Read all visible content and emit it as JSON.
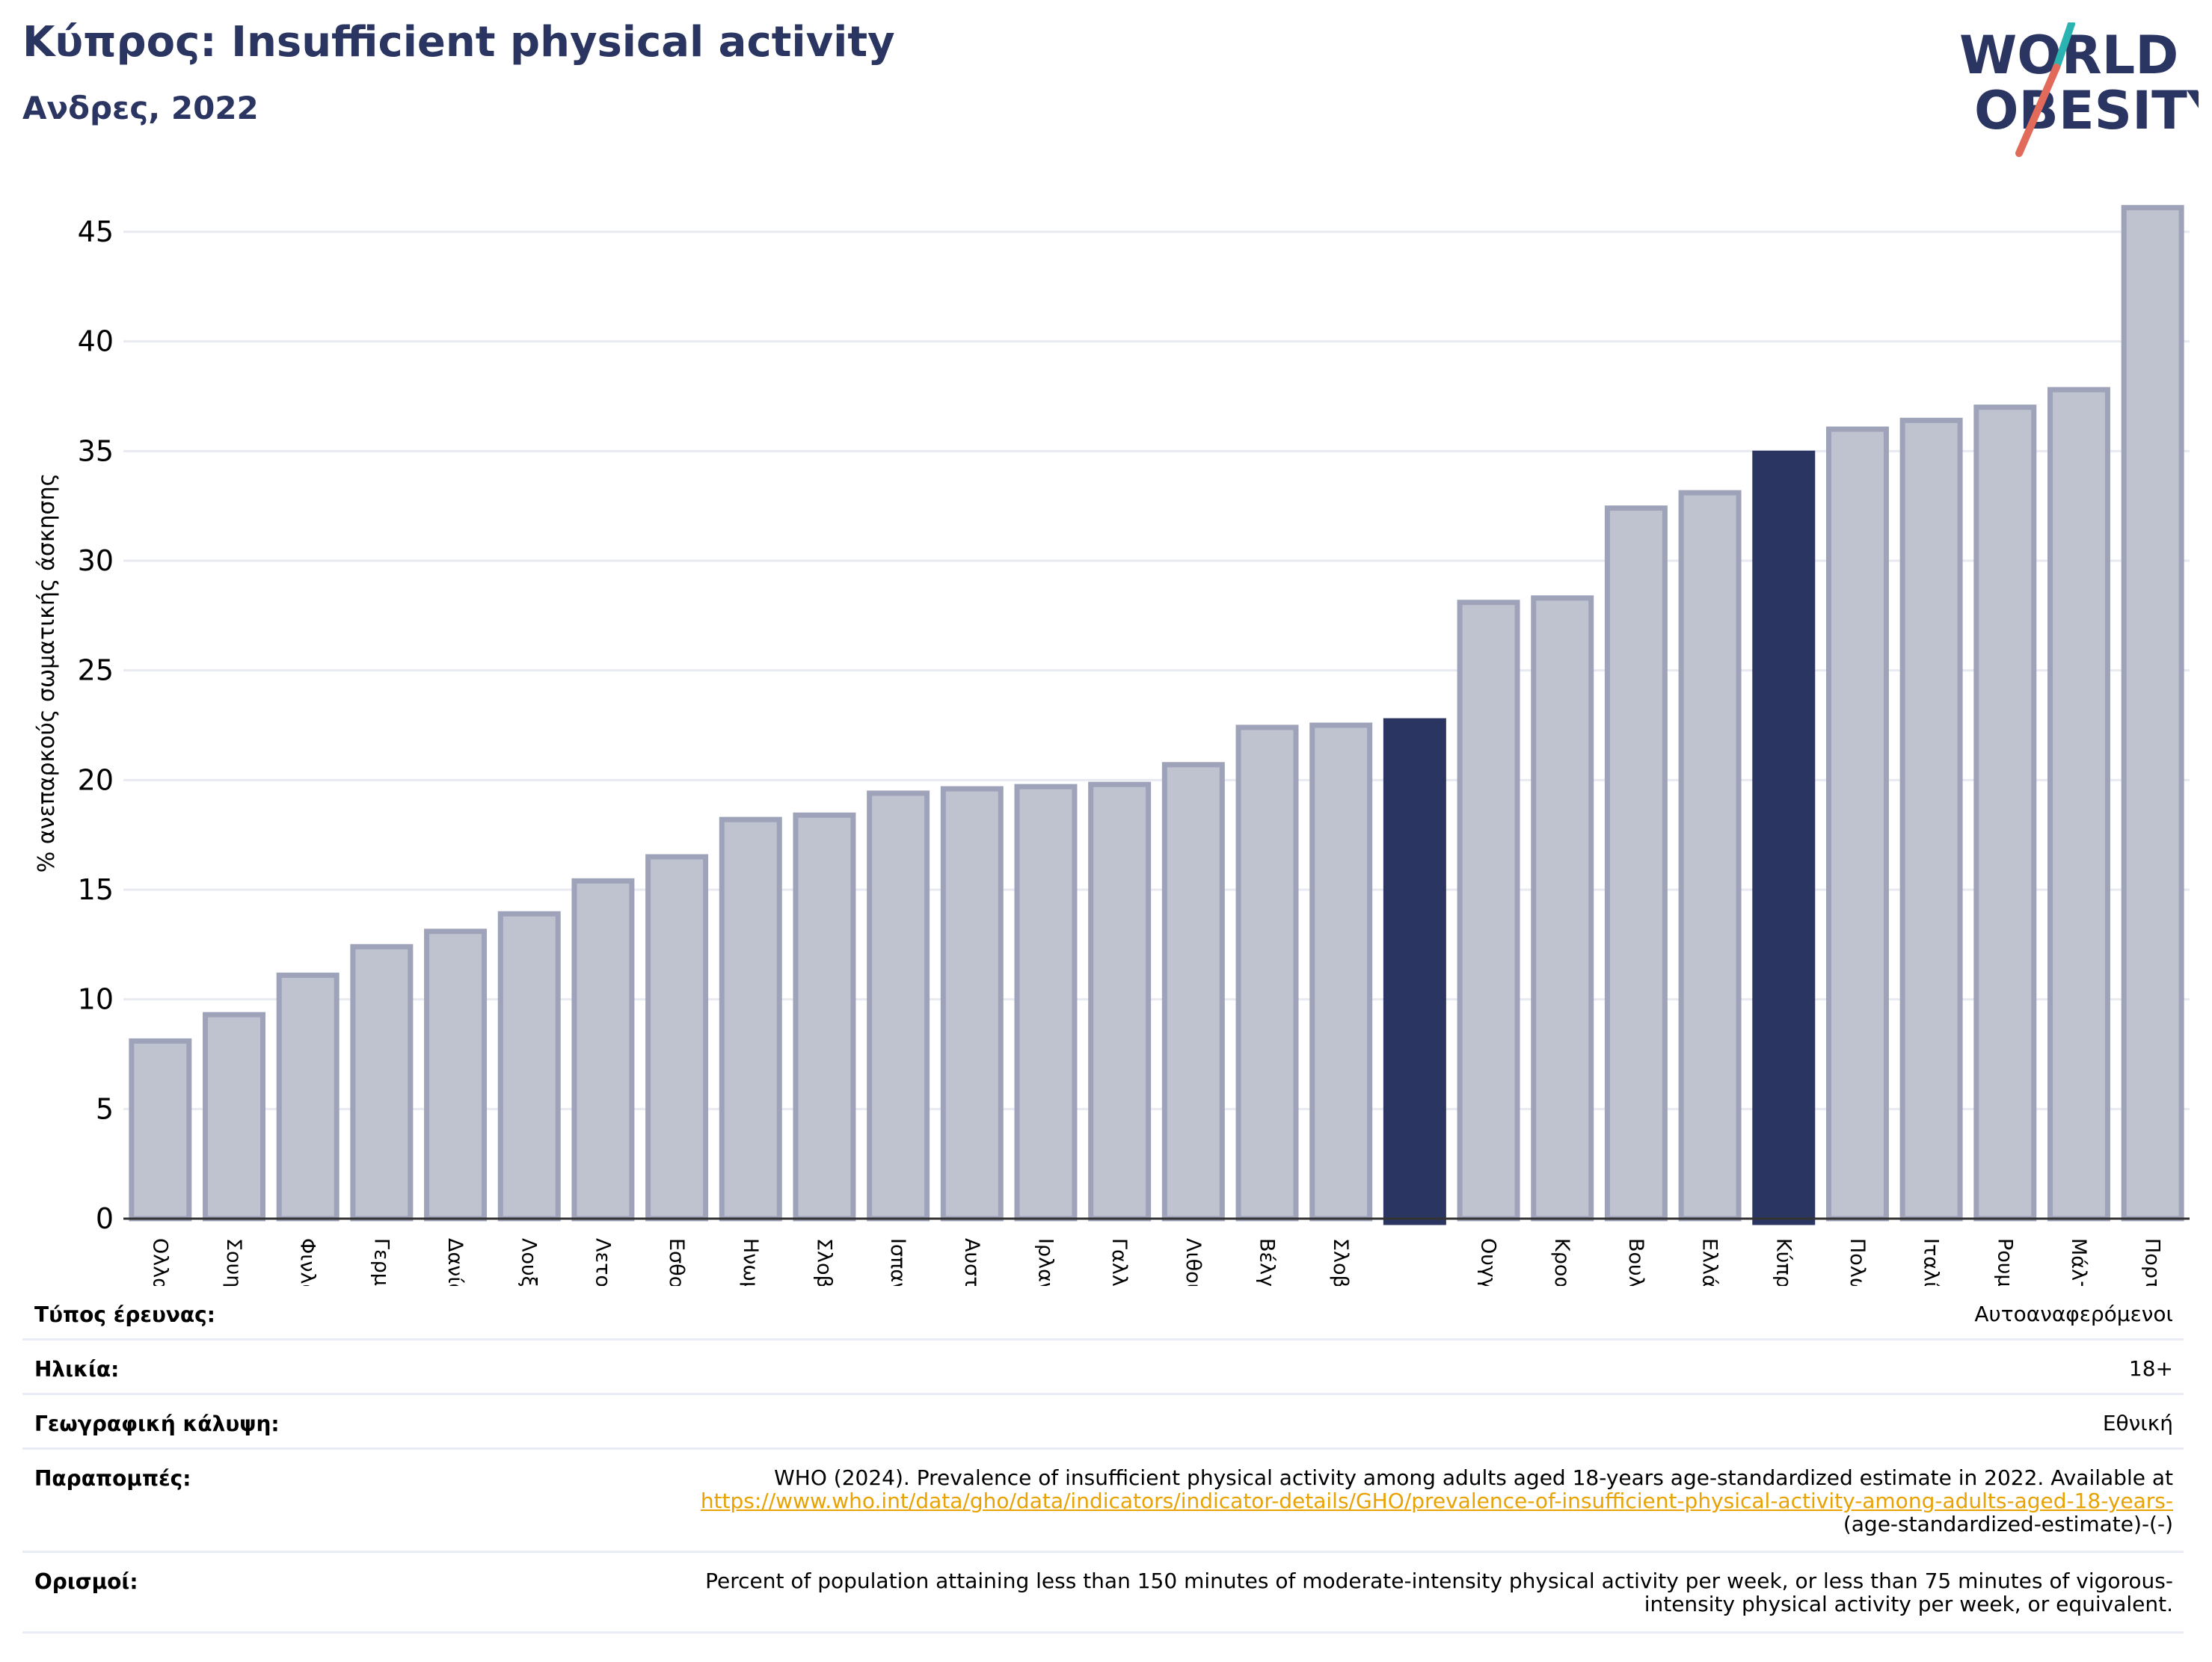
{
  "header": {
    "title": "Κύπρος: Insufficient physical activity",
    "subtitle": "Ανδρες, 2022"
  },
  "logo": {
    "line1": "WORLD",
    "line2": "OBESITY",
    "accent_teal": "#2ab3b1",
    "accent_coral": "#e26a5a",
    "text_color": "#2a3561"
  },
  "colors": {
    "bar_fill": "#bfc2cf",
    "bar_stroke": "#9ea3ba",
    "highlight": "#2a3561",
    "gridline": "#e8eaf2",
    "axis": "#333333"
  },
  "chart_data": {
    "type": "bar",
    "ylabel": "% ανεπαρκούς σωματικής άσκησης",
    "xlabel": "",
    "ylim": [
      0,
      47
    ],
    "yticks": [
      0,
      5,
      10,
      15,
      20,
      25,
      30,
      35,
      40,
      45
    ],
    "grid": true,
    "categories": [
      "Ολλανδία",
      "Σουηδία",
      "Φινλανδία",
      "Γερμανία",
      "Δανία",
      "Λουξεμβούργο",
      "Λετονία",
      "Εσθονία",
      "Ηνωμένο Βασίλειο",
      "Σλοβενία",
      "Ισπανία",
      "Αυστρία",
      "Ιρλανδία",
      "Γαλλία",
      "Λιθουανία",
      "Βέλγιο",
      "Σλοβακία",
      "",
      "Ουγγαρία",
      "Κροατία",
      "Βουλγαρία",
      "Ελλάδα",
      "Κύπρος",
      "Πολωνία",
      "Ιταλία",
      "Ρουμανία",
      "Μάλτα",
      "Πορτογαλία"
    ],
    "values": [
      8.1,
      9.3,
      11.1,
      12.4,
      13.1,
      13.9,
      15.4,
      16.5,
      18.2,
      18.4,
      19.4,
      19.6,
      19.7,
      19.8,
      20.7,
      22.4,
      22.5,
      22.7,
      28.1,
      28.3,
      32.4,
      33.1,
      34.9,
      36.0,
      36.4,
      37.0,
      37.8,
      46.1
    ],
    "highlighted": [
      17,
      22
    ]
  },
  "meta": {
    "rows": [
      {
        "label": "Τύπος έρευνας:",
        "value": "Αυτοαναφερόμενοι"
      },
      {
        "label": "Ηλικία:",
        "value": "18+"
      },
      {
        "label": "Γεωγραφική κάλυψη:",
        "value": "Εθνική"
      }
    ],
    "references": {
      "label": "Παραπομπές:",
      "text": "WHO (2024). Prevalence of insufficient physical activity among adults aged 18-years age-standardized estimate in 2022. Available at",
      "link": "https://www.who.int/data/gho/data/indicators/indicator-details/GHO/prevalence-of-insufficient-physical-activity-among-adults-aged-18-years-",
      "tail": "(age-standardized-estimate)-(-)"
    },
    "definitions": {
      "label": "Ορισμοί:",
      "line1": "Percent of population attaining less than 150 minutes of moderate-intensity physical activity per week, or less than 75 minutes of vigorous-",
      "line2": "intensity physical activity per week, or equivalent."
    }
  }
}
